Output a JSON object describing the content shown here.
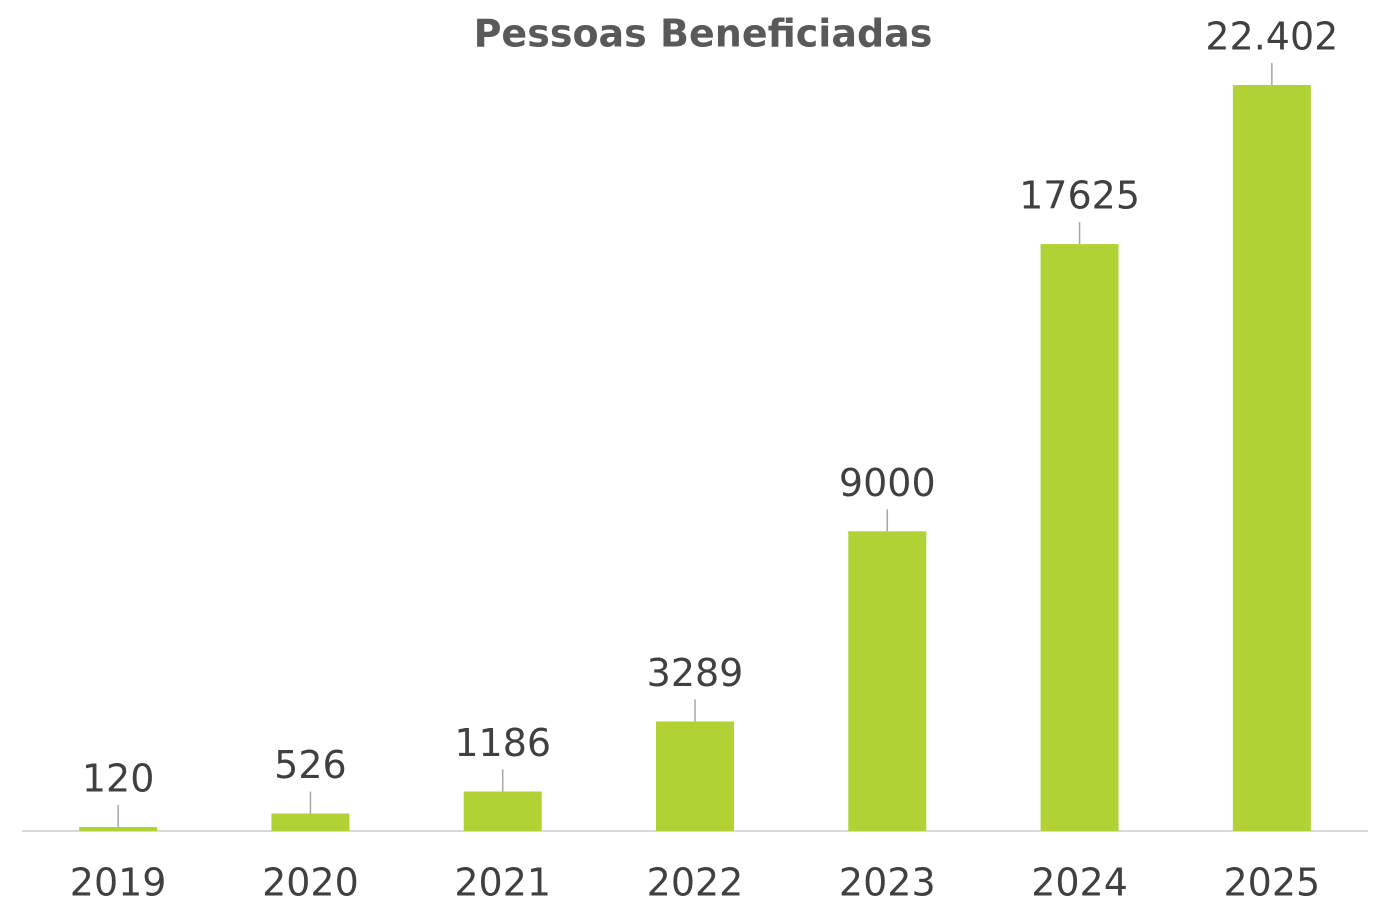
{
  "chart_data": {
    "type": "bar",
    "title": "Pessoas Beneficiadas",
    "categories": [
      "2019",
      "2020",
      "2021",
      "2022",
      "2023",
      "2024",
      "2025"
    ],
    "values": [
      120,
      526,
      1186,
      3289,
      9000,
      17625,
      22402
    ],
    "value_labels": [
      "120",
      "526",
      "1186",
      "3289",
      "9000",
      "17625",
      "22.402"
    ],
    "color": "#b0d235"
  }
}
